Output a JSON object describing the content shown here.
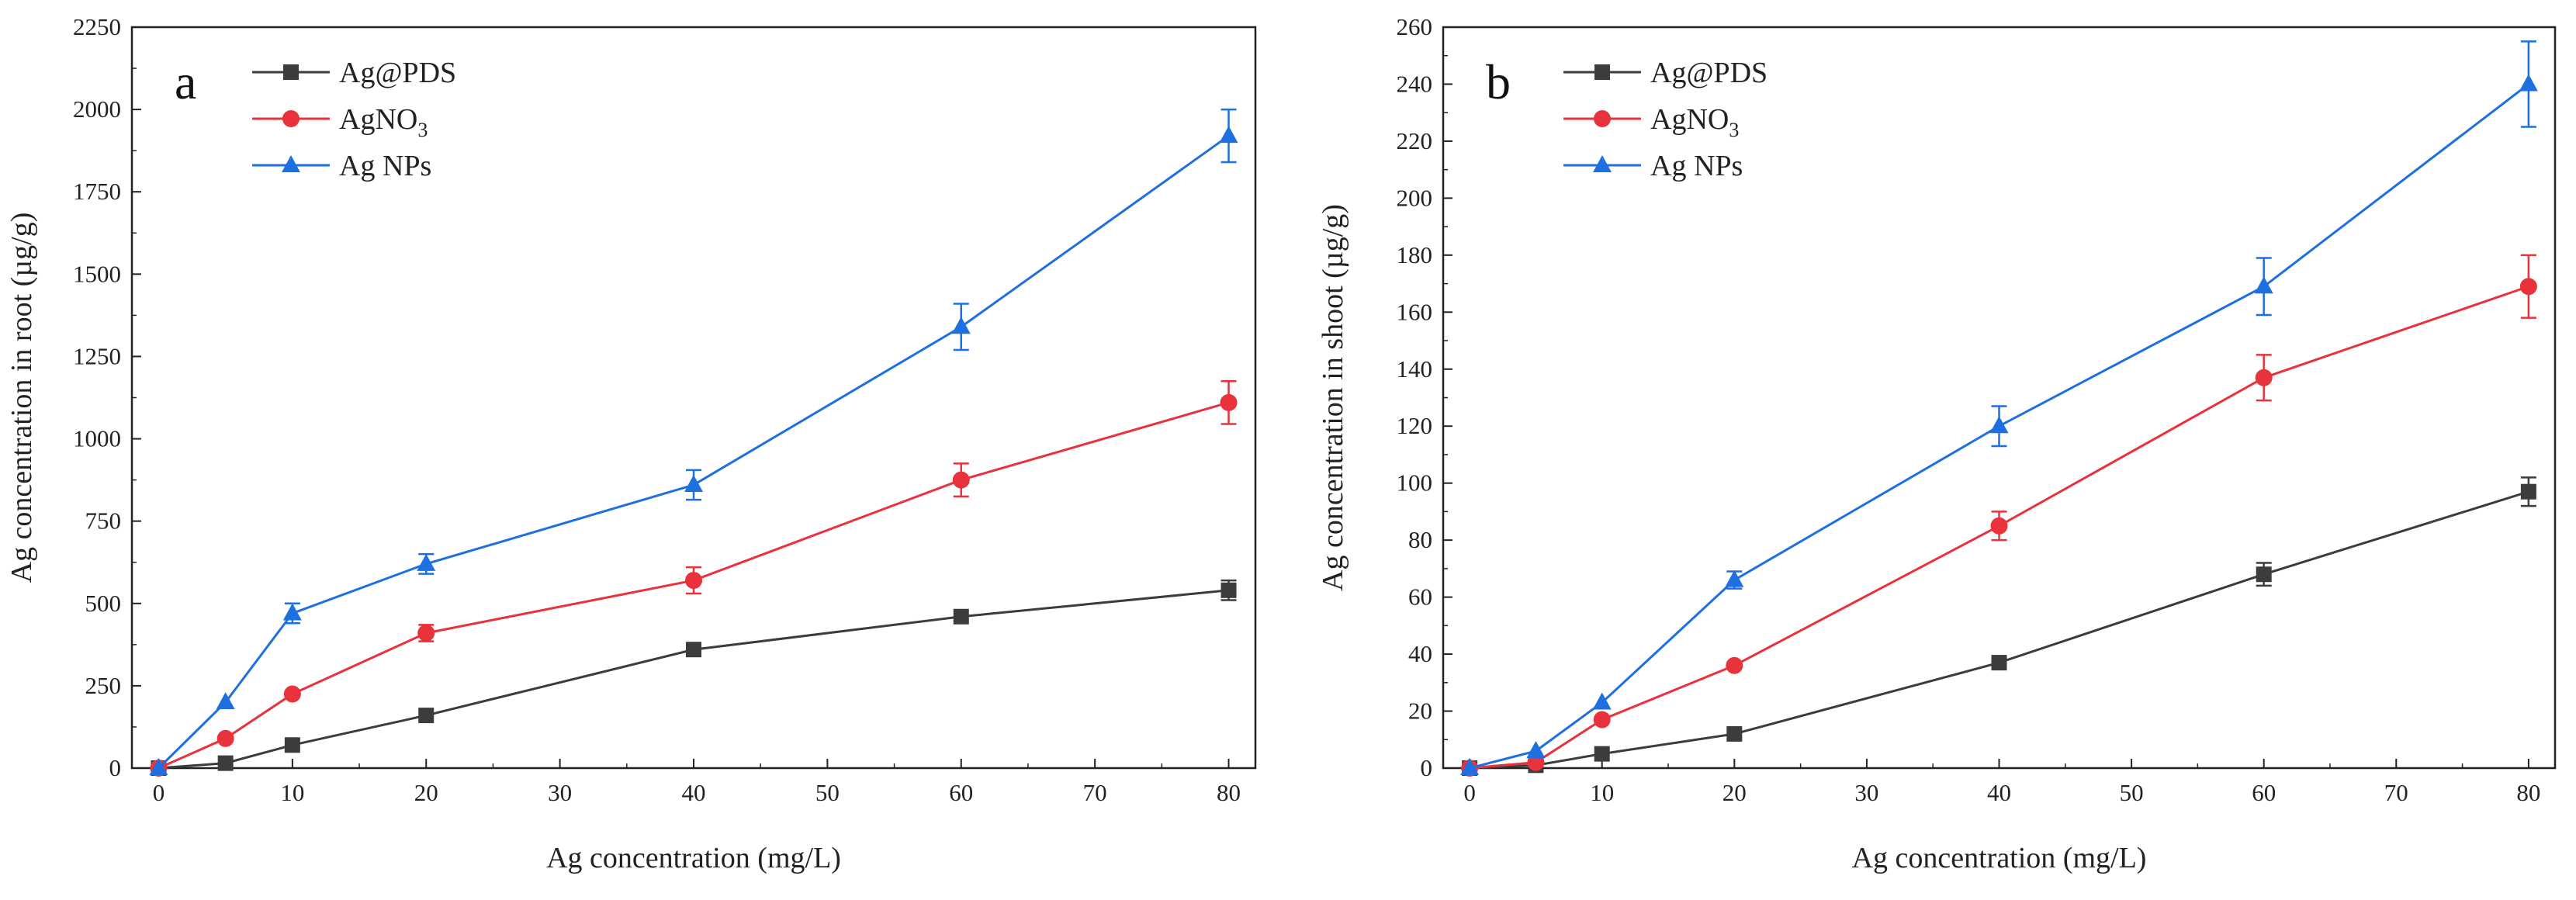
{
  "chart_data": [
    {
      "panel_label": "a",
      "type": "line",
      "xlabel": "Ag concentration (mg/L)",
      "ylabel": "Ag concentration in root (µg/g)",
      "xlim": [
        -2,
        82
      ],
      "ylim": [
        0,
        2250
      ],
      "xticks": [
        0,
        10,
        20,
        30,
        40,
        50,
        60,
        70,
        80
      ],
      "yticks": [
        0,
        250,
        500,
        750,
        1000,
        1250,
        1500,
        1750,
        2000,
        2250
      ],
      "x": [
        0,
        5,
        10,
        20,
        40,
        60,
        80
      ],
      "legend_position": "top-left",
      "series": [
        {
          "name": "Ag@PDS",
          "name_main": "Ag@PDS",
          "name_sub": "",
          "marker": "square",
          "color": "#3c3c3c",
          "values": [
            0,
            15,
            70,
            160,
            360,
            460,
            540
          ],
          "errors": [
            0,
            0,
            0,
            0,
            0,
            0,
            30
          ]
        },
        {
          "name": "AgNO3",
          "name_main": "AgNO",
          "name_sub": "3",
          "marker": "circle",
          "color": "#e8323c",
          "values": [
            0,
            90,
            225,
            410,
            570,
            875,
            1110
          ],
          "errors": [
            0,
            0,
            0,
            25,
            40,
            50,
            65
          ]
        },
        {
          "name": "Ag NPs",
          "name_main": "Ag NPs",
          "name_sub": "",
          "marker": "triangle",
          "color": "#1e6fe0",
          "values": [
            0,
            200,
            470,
            620,
            860,
            1340,
            1920
          ],
          "errors": [
            0,
            0,
            30,
            30,
            45,
            70,
            80
          ]
        }
      ]
    },
    {
      "panel_label": "b",
      "type": "line",
      "xlabel": "Ag concentration (mg/L)",
      "ylabel": "Ag concentration in shoot (µg/g)",
      "xlim": [
        -2,
        82
      ],
      "ylim": [
        0,
        260
      ],
      "xticks": [
        0,
        10,
        20,
        30,
        40,
        50,
        60,
        70,
        80
      ],
      "yticks": [
        0,
        20,
        40,
        60,
        80,
        100,
        120,
        140,
        160,
        180,
        200,
        220,
        240,
        260
      ],
      "x": [
        0,
        5,
        10,
        20,
        40,
        60,
        80
      ],
      "legend_position": "top-left",
      "series": [
        {
          "name": "Ag@PDS",
          "name_main": "Ag@PDS",
          "name_sub": "",
          "marker": "square",
          "color": "#3c3c3c",
          "values": [
            0,
            1,
            5,
            12,
            37,
            68,
            97
          ],
          "errors": [
            0,
            0,
            0,
            0,
            0,
            4,
            5
          ]
        },
        {
          "name": "AgNO3",
          "name_main": "AgNO",
          "name_sub": "3",
          "marker": "circle",
          "color": "#e8323c",
          "values": [
            0,
            2,
            17,
            36,
            85,
            137,
            169
          ],
          "errors": [
            0,
            0,
            0,
            0,
            5,
            8,
            11
          ]
        },
        {
          "name": "Ag NPs",
          "name_main": "Ag NPs",
          "name_sub": "",
          "marker": "triangle",
          "color": "#1e6fe0",
          "values": [
            0,
            6,
            23,
            66,
            120,
            169,
            240
          ],
          "errors": [
            0,
            0,
            0,
            3,
            7,
            10,
            15
          ]
        }
      ]
    }
  ]
}
